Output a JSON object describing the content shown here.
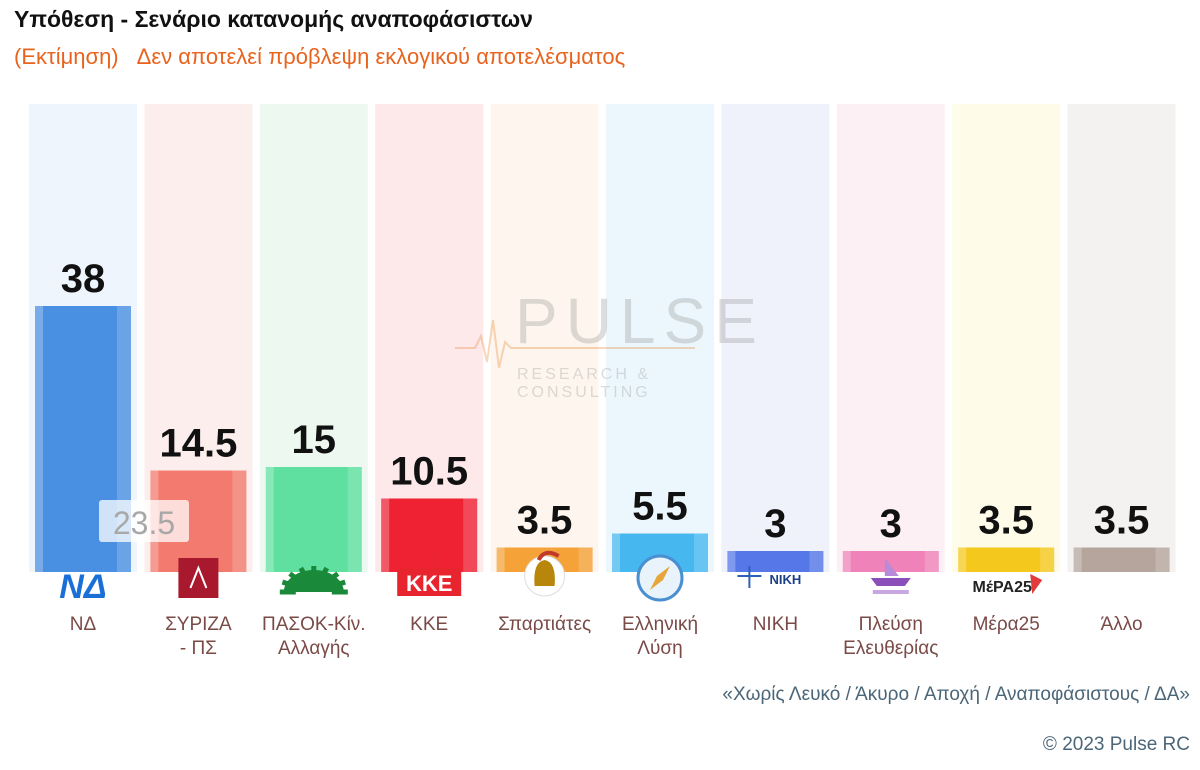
{
  "header": {
    "title": "Υπόθεση - Σενάριο κατανομής αναποφάσιστων",
    "subtitle_part1": "(Εκτίμηση)",
    "subtitle_part2": "Δεν αποτελεί πρόβλεψη εκλογικού αποτελέσματος"
  },
  "watermark": {
    "main": "PULSE",
    "sub": "RESEARCH & CONSULTING"
  },
  "footer": {
    "note": "«Χωρίς Λευκό / Άκυρο / Αποχή / Αναποφάσιστους / ΔΑ»",
    "copyright": "© 2023 Pulse RC"
  },
  "chart_data": {
    "type": "bar",
    "title": "Υπόθεση - Σενάριο κατανομής αναποφάσιστων",
    "subtitle": "(Εκτίμηση) Δεν αποτελεί πρόβλεψη εκλογικού αποτελέσματος",
    "grid": false,
    "legend": "none",
    "ylim": [
      0,
      50
    ],
    "categories": [
      {
        "label": [
          "ΝΔ"
        ],
        "logo_text": "ΝΔ",
        "logo": "nd-logo-icon"
      },
      {
        "label": [
          "ΣΥΡΙΖΑ",
          "- ΠΣ"
        ],
        "logo_text": "",
        "logo": "syriza-logo-icon"
      },
      {
        "label": [
          "ΠΑΣΟΚ-Κίν.",
          "Αλλαγής"
        ],
        "logo_text": "",
        "logo": "pasok-sun-icon"
      },
      {
        "label": [
          "ΚΚΕ"
        ],
        "logo_text": "ΚΚΕ",
        "logo": "kke-logo-icon"
      },
      {
        "label": [
          "Σπαρτιάτες"
        ],
        "logo_text": "",
        "logo": "spartan-helmet-icon"
      },
      {
        "label": [
          "Ελληνική",
          "Λύση"
        ],
        "logo_text": "",
        "logo": "compass-icon"
      },
      {
        "label": [
          "ΝΙΚΗ"
        ],
        "logo_text": "ΝΙΚΗ",
        "logo": "niki-logo-icon"
      },
      {
        "label": [
          "Πλεύση",
          "Ελευθερίας"
        ],
        "logo_text": "",
        "logo": "ship-icon"
      },
      {
        "label": [
          "Μέρα25"
        ],
        "logo_text": "ΜέΡΑ25",
        "logo": "mera25-logo-icon"
      },
      {
        "label": [
          "Άλλο"
        ],
        "logo_text": "",
        "logo": ""
      }
    ],
    "values": [
      38,
      14.5,
      15,
      10.5,
      3.5,
      5.5,
      3,
      3,
      3.5,
      3.5
    ],
    "value_labels": [
      "38",
      "14.5",
      "15",
      "10.5",
      "3.5",
      "5.5",
      "3",
      "3",
      "3.5",
      "3.5"
    ],
    "annotation": {
      "category_index": 0,
      "text": "23.5",
      "value": 23.5
    },
    "colors": [
      "#4a90e2",
      "#f27a6e",
      "#5fe0a0",
      "#ee2233",
      "#f5a238",
      "#47b8ef",
      "#5577e8",
      "#ef82b8",
      "#f5c81e",
      "#b5a59d"
    ],
    "column_bg": [
      "#eef5fd",
      "#fdeeee",
      "#ecf8f0",
      "#fde8ea",
      "#fef6ee",
      "#ecf7fd",
      "#eff1fb",
      "#fdf0f4",
      "#fefbe8",
      "#f4f2f1"
    ]
  }
}
